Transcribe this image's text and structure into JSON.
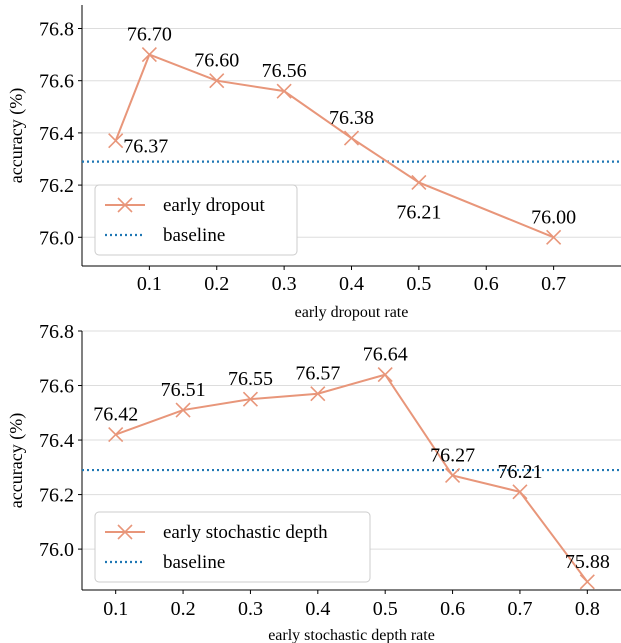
{
  "chart_data": [
    {
      "type": "line",
      "xlabel": "early dropout rate",
      "ylabel": "accuracy (%)",
      "xlim": [
        0.0,
        0.8
      ],
      "ylim": [
        75.89,
        76.89
      ],
      "xticks": [
        "0.1",
        "0.2",
        "0.3",
        "0.4",
        "0.5",
        "0.6",
        "0.7"
      ],
      "yticks": [
        "76.0",
        "76.2",
        "76.4",
        "76.6",
        "76.8"
      ],
      "grid": "horizontal",
      "legend_position": "lower-left",
      "series": [
        {
          "name": "early dropout",
          "color": "#e8967a",
          "marker": "x",
          "x": [
            0.05,
            0.1,
            0.2,
            0.3,
            0.4,
            0.5,
            0.7
          ],
          "y": [
            76.37,
            76.7,
            76.6,
            76.56,
            76.38,
            76.21,
            76.0
          ],
          "labels": [
            "76.37",
            "76.70",
            "76.60",
            "76.56",
            "76.38",
            "76.21",
            "76.00"
          ]
        }
      ],
      "reference_lines": [
        {
          "name": "baseline",
          "y": 76.29,
          "color": "#1f77b4",
          "style": "dotted"
        }
      ]
    },
    {
      "type": "line",
      "xlabel": "early stochastic depth rate",
      "ylabel": "accuracy (%)",
      "xlim": [
        0.05,
        0.85
      ],
      "ylim": [
        75.85,
        76.8
      ],
      "xticks": [
        "0.1",
        "0.2",
        "0.3",
        "0.4",
        "0.5",
        "0.6",
        "0.7",
        "0.8"
      ],
      "yticks": [
        "76.0",
        "76.2",
        "76.4",
        "76.6",
        "76.8"
      ],
      "grid": "horizontal",
      "legend_position": "lower-left",
      "series": [
        {
          "name": "early stochastic depth",
          "color": "#e8967a",
          "marker": "x",
          "x": [
            0.1,
            0.2,
            0.3,
            0.4,
            0.5,
            0.6,
            0.7,
            0.8
          ],
          "y": [
            76.42,
            76.51,
            76.55,
            76.57,
            76.64,
            76.27,
            76.21,
            75.88
          ],
          "labels": [
            "76.42",
            "76.51",
            "76.55",
            "76.57",
            "76.64",
            "76.27",
            "76.21",
            "75.88"
          ]
        }
      ],
      "reference_lines": [
        {
          "name": "baseline",
          "y": 76.29,
          "color": "#1f77b4",
          "style": "dotted"
        }
      ]
    }
  ]
}
